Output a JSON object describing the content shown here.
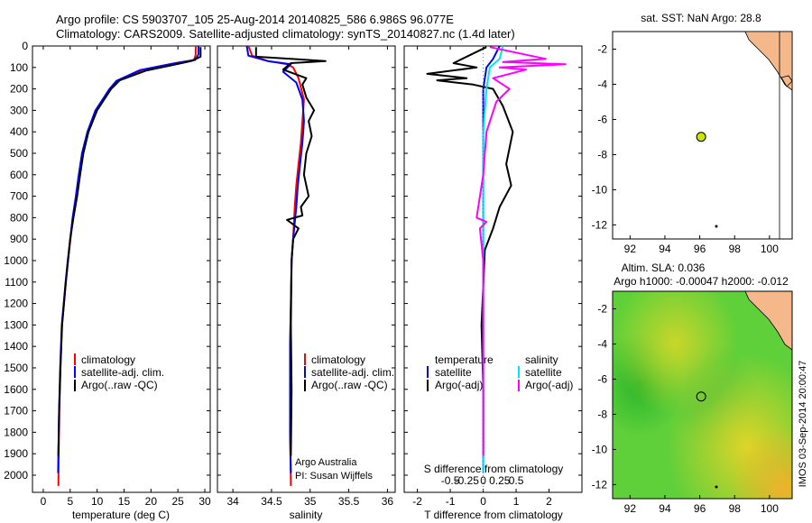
{
  "header": {
    "line1": "Argo profile: CS 5903707_105 25-Aug-2014 20140825_586 6.986S 96.077E",
    "line2": "Climatology: CARS2009. Satellite-adjusted climatology: synTS_20140827.nc (1.4d later)"
  },
  "side_label": "IMOS 03-Sep-2014 20:00:47",
  "colors": {
    "climatology": "#ff0000",
    "satellite": "#0000ff",
    "argo": "#000000",
    "salinity_satellite": "#00e5ee",
    "salinity_argo": "#ff00ff",
    "land": "#f4b88a",
    "float_marker": "#c8e600"
  },
  "chart_data": [
    {
      "type": "line",
      "xlabel": "temperature (deg C)",
      "ylabel": "",
      "xlim": [
        -2,
        31
      ],
      "ylim": [
        2080,
        0
      ],
      "xticks": [
        0,
        5,
        10,
        15,
        20,
        25,
        30
      ],
      "yticks": [
        0,
        100,
        200,
        300,
        400,
        500,
        600,
        700,
        800,
        900,
        1000,
        1100,
        1200,
        1300,
        1400,
        1500,
        1600,
        1700,
        1800,
        1900,
        2000
      ],
      "legend": [
        "climatology",
        "satellite-adj. clim.",
        "Argo(..raw -QC)"
      ],
      "series": [
        {
          "name": "climatology",
          "color": "#ff0000",
          "x": [
            28.3,
            28.3,
            28,
            24.5,
            18.5,
            14,
            12.5,
            11.2,
            9.8,
            8.3,
            7.3,
            6.7,
            6.1,
            5.5,
            5.05,
            4.6,
            4.2,
            3.85,
            3.5,
            3.2,
            3.0,
            2.85,
            2.8
          ],
          "y": [
            0,
            40,
            65,
            80,
            110,
            160,
            200,
            250,
            300,
            400,
            500,
            600,
            700,
            800,
            900,
            1000,
            1100,
            1200,
            1300,
            1500,
            1700,
            1900,
            2050
          ]
        },
        {
          "name": "satellite-adj. clim.",
          "color": "#0000ff",
          "x": [
            28.8,
            28.8,
            28.2,
            24.2,
            18,
            13.6,
            12.3,
            11,
            9.7,
            8.2,
            7.2,
            6.6,
            6.05,
            5.45,
            5.0,
            4.55,
            4.15,
            3.8,
            3.45,
            3.15,
            2.95,
            2.8,
            2.75
          ],
          "y": [
            0,
            40,
            65,
            82,
            112,
            162,
            200,
            250,
            300,
            400,
            500,
            600,
            700,
            800,
            900,
            1000,
            1100,
            1200,
            1300,
            1500,
            1700,
            1900,
            1990
          ]
        },
        {
          "name": "Argo(..raw -QC)",
          "color": "#000000",
          "x": [
            29.2,
            29.2,
            27.5,
            24.8,
            19,
            14.2,
            12.6,
            11.3,
            10,
            8.4,
            7.45,
            6.85,
            6.3,
            5.6,
            5.0,
            4.6,
            4.2,
            3.85,
            3.5,
            3.2,
            2.95,
            2.8
          ],
          "y": [
            5,
            50,
            70,
            85,
            115,
            160,
            200,
            250,
            300,
            400,
            500,
            600,
            700,
            800,
            900,
            1000,
            1100,
            1200,
            1300,
            1500,
            1700,
            1910
          ]
        }
      ]
    },
    {
      "type": "line",
      "xlabel": "salinity",
      "ylabel": "",
      "xlim": [
        33.8,
        36.1
      ],
      "ylim": [
        2080,
        0
      ],
      "xticks": [
        34,
        34.5,
        35,
        35.5,
        36
      ],
      "legend": [
        "climatology",
        "satellite-adj. clim.",
        "Argo(..raw -QC)"
      ],
      "annotation": [
        "Argo Australia",
        "PI: Susan Wijffels"
      ],
      "series": [
        {
          "name": "climatology",
          "color": "#ff0000",
          "x": [
            34.2,
            34.25,
            34.45,
            34.7,
            34.78,
            34.85,
            34.92,
            34.9,
            34.88,
            34.85,
            34.82,
            34.8,
            34.78,
            34.76,
            34.75,
            34.74,
            34.74,
            34.74,
            34.75
          ],
          "y": [
            0,
            45,
            70,
            85,
            100,
            150,
            250,
            350,
            450,
            550,
            650,
            750,
            900,
            1000,
            1200,
            1400,
            1600,
            1800,
            2050
          ]
        },
        {
          "name": "satellite-adj. clim.",
          "color": "#0000ff",
          "x": [
            34.18,
            34.2,
            34.45,
            34.75,
            34.65,
            34.82,
            34.9,
            34.92,
            34.9,
            34.87,
            34.84,
            34.82,
            34.78,
            34.76,
            34.75,
            34.74,
            34.74,
            34.74,
            34.75
          ],
          "y": [
            0,
            45,
            70,
            85,
            120,
            170,
            250,
            350,
            450,
            550,
            650,
            750,
            900,
            1000,
            1200,
            1400,
            1600,
            1800,
            1990
          ]
        },
        {
          "name": "Argo(..raw -QC)",
          "color": "#000000",
          "x": [
            34.3,
            34.3,
            34.75,
            35.2,
            34.75,
            34.65,
            34.95,
            34.9,
            34.95,
            35.05,
            34.98,
            35.02,
            34.95,
            34.92,
            34.98,
            34.88,
            34.9,
            34.7,
            34.85,
            34.78,
            34.76,
            34.75,
            34.76,
            34.75
          ],
          "y": [
            5,
            50,
            60,
            70,
            80,
            110,
            150,
            180,
            240,
            300,
            350,
            420,
            500,
            600,
            700,
            750,
            790,
            810,
            850,
            900,
            1000,
            1300,
            1600,
            1910
          ]
        }
      ]
    },
    {
      "type": "line",
      "xlabel": "T difference from climatology",
      "xlabel2": "S difference from climatology",
      "xlim": [
        -2.4,
        3.0
      ],
      "ylim": [
        2080,
        0
      ],
      "xticks": [
        -2,
        -1,
        0,
        1,
        2
      ],
      "xtick_labels": [
        "-2",
        "-1",
        "0",
        "1",
        "2"
      ],
      "x2ticks": [
        -0.5,
        -0.25,
        0,
        0.25,
        0.5
      ],
      "x2tick_labels": [
        "-0.5",
        "-0.25",
        "0",
        "0.25",
        "0.5"
      ],
      "legend_temperature": [
        "temperature",
        "satellite",
        "Argo(-adj)"
      ],
      "legend_salinity": [
        "salinity",
        "satellite",
        "Argo(-adj)"
      ],
      "series": [
        {
          "name": "temperature satellite",
          "color": "#0000ff",
          "x": [
            0.5,
            0.3,
            0.1,
            0.0,
            0.0,
            0.0,
            0.0,
            0.0,
            0.0
          ],
          "y": [
            0,
            60,
            100,
            200,
            400,
            800,
            1200,
            1600,
            1990
          ]
        },
        {
          "name": "temperature Argo(-adj)",
          "color": "#000000",
          "x": [
            0.1,
            -0.9,
            -0.2,
            -1.7,
            -0.5,
            -1.4,
            -0.3,
            0.3,
            0.6,
            0.9,
            0.7,
            0.85,
            0.5,
            0.3,
            0.05,
            -0.05,
            0.0,
            0.0
          ],
          "y": [
            5,
            80,
            100,
            130,
            150,
            160,
            180,
            200,
            280,
            400,
            550,
            650,
            750,
            850,
            950,
            1300,
            1600,
            1910
          ]
        },
        {
          "name": "salinity satellite",
          "color": "#00e5ee",
          "x": [
            0.6,
            0.5,
            0.2,
            0.1,
            0.0,
            0.0,
            0.0,
            0.0
          ],
          "y": [
            0,
            60,
            100,
            200,
            400,
            800,
            1400,
            1990
          ]
        },
        {
          "name": "salinity Argo(-adj)",
          "color": "#ff00ff",
          "x": [
            0.2,
            1.9,
            0.6,
            2.5,
            0.5,
            1.3,
            0.3,
            0.8,
            0.4,
            0.1,
            0.0,
            -0.2,
            0.1,
            -0.1,
            0.0,
            0.0
          ],
          "y": [
            5,
            60,
            75,
            85,
            100,
            110,
            150,
            200,
            260,
            400,
            600,
            800,
            820,
            850,
            1000,
            1910
          ]
        }
      ]
    },
    {
      "type": "scatter",
      "title": "sat. SST: NaN Argo: 28.8",
      "xlim": [
        91,
        101.3
      ],
      "ylim": [
        -12.8,
        -1
      ],
      "xticks": [
        92,
        94,
        96,
        98,
        100
      ],
      "yticks": [
        -2,
        -4,
        -6,
        -8,
        -10,
        -12
      ],
      "points": [
        {
          "x": 96.08,
          "y": -6.99
        }
      ]
    },
    {
      "type": "heatmap",
      "title_lines": [
        "Altim. SLA: 0.036",
        "Argo h1000: -0.00047 h2000: -0.012"
      ],
      "xlim": [
        91,
        101.3
      ],
      "ylim": [
        -12.8,
        -1
      ],
      "xticks": [
        92,
        94,
        96,
        98,
        100
      ],
      "yticks": [
        -2,
        -4,
        -6,
        -8,
        -10,
        -12
      ],
      "points": [
        {
          "x": 96.08,
          "y": -6.99
        }
      ]
    }
  ]
}
